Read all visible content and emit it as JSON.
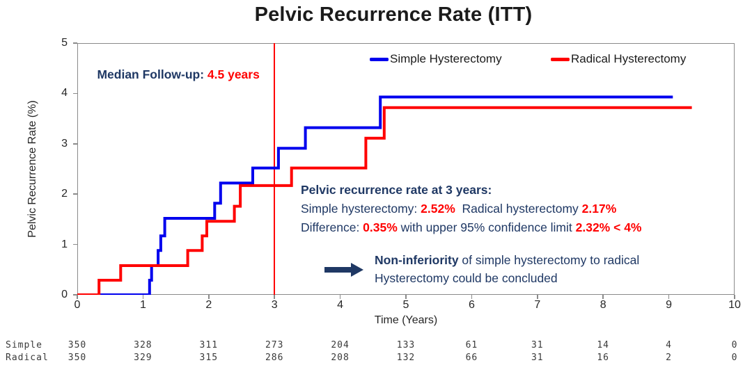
{
  "title": "Pelvic Recurrence Rate (ITT)",
  "colors": {
    "navy": "#1F3864",
    "red": "#FF0000",
    "blue": "#0000EE",
    "axis": "#8a8a8a"
  },
  "chart_data": {
    "type": "line",
    "subtype": "step",
    "title": "Pelvic Recurrence Rate (ITT)",
    "xlabel": "Time (Years)",
    "ylabel": "Pelvic Recurrence Rate (%)",
    "xlim": [
      0,
      10
    ],
    "ylim": [
      0,
      5
    ],
    "xticks": [
      0,
      1,
      2,
      3,
      4,
      5,
      6,
      7,
      8,
      9,
      10
    ],
    "yticks": [
      0,
      1,
      2,
      3,
      4,
      5
    ],
    "grid": false,
    "legend_position": "top-inside",
    "reference_line": {
      "x": 3,
      "color": "#FF0000"
    },
    "series": [
      {
        "name": "Simple Hysterectomy",
        "color": "#0000EE",
        "start": [
          0,
          0
        ],
        "steps": [
          [
            1.1,
            0.29
          ],
          [
            1.13,
            0.58
          ],
          [
            1.23,
            0.88
          ],
          [
            1.27,
            1.17
          ],
          [
            1.33,
            1.52
          ],
          [
            2.09,
            1.82
          ],
          [
            2.18,
            2.22
          ],
          [
            2.67,
            2.52
          ],
          [
            3.06,
            2.91
          ],
          [
            3.47,
            3.32
          ],
          [
            4.61,
            3.93
          ]
        ],
        "end_x": 9.06
      },
      {
        "name": "Radical Hysterectomy",
        "color": "#FF0000",
        "start": [
          0,
          0
        ],
        "steps": [
          [
            0.33,
            0.29
          ],
          [
            0.66,
            0.58
          ],
          [
            1.68,
            0.88
          ],
          [
            1.9,
            1.17
          ],
          [
            1.97,
            1.46
          ],
          [
            2.39,
            1.76
          ],
          [
            2.48,
            2.17
          ],
          [
            3.26,
            2.52
          ],
          [
            4.39,
            3.11
          ],
          [
            4.67,
            3.72
          ]
        ],
        "end_x": 9.35
      }
    ]
  },
  "annotations": {
    "median": {
      "label": "Median Follow-up: ",
      "value": "4.5 years"
    },
    "stats_line1": "Pelvic recurrence rate at 3 years:",
    "stats_line2": [
      {
        "text": "Simple hysterectomy: "
      },
      {
        "text": "2.52%",
        "style": "red-bold"
      },
      {
        "text": "  Radical hysterectomy "
      },
      {
        "text": "2.17%",
        "style": "red-bold"
      }
    ],
    "stats_line3": [
      {
        "text": "Difference: "
      },
      {
        "text": "0.35%",
        "style": "red-bold"
      },
      {
        "text": " with upper 95% confidence limit "
      },
      {
        "text": "2.32% < 4%",
        "style": "red-bold"
      }
    ],
    "conclusion_line1": [
      {
        "text": "Non-inferiority",
        "style": "bold"
      },
      {
        "text": " of simple hysterectomy to radical"
      }
    ],
    "conclusion_line2": [
      {
        "text": "Hysterectomy could be concluded"
      }
    ]
  },
  "risk_table": {
    "rows": [
      {
        "label": "Simple",
        "values": [
          "350",
          "328",
          "311",
          "273",
          "204",
          "133",
          "61",
          "31",
          "14",
          "4",
          "0"
        ]
      },
      {
        "label": "Radical",
        "values": [
          "350",
          "329",
          "315",
          "286",
          "208",
          "132",
          "66",
          "31",
          "16",
          "2",
          "0"
        ]
      }
    ]
  }
}
